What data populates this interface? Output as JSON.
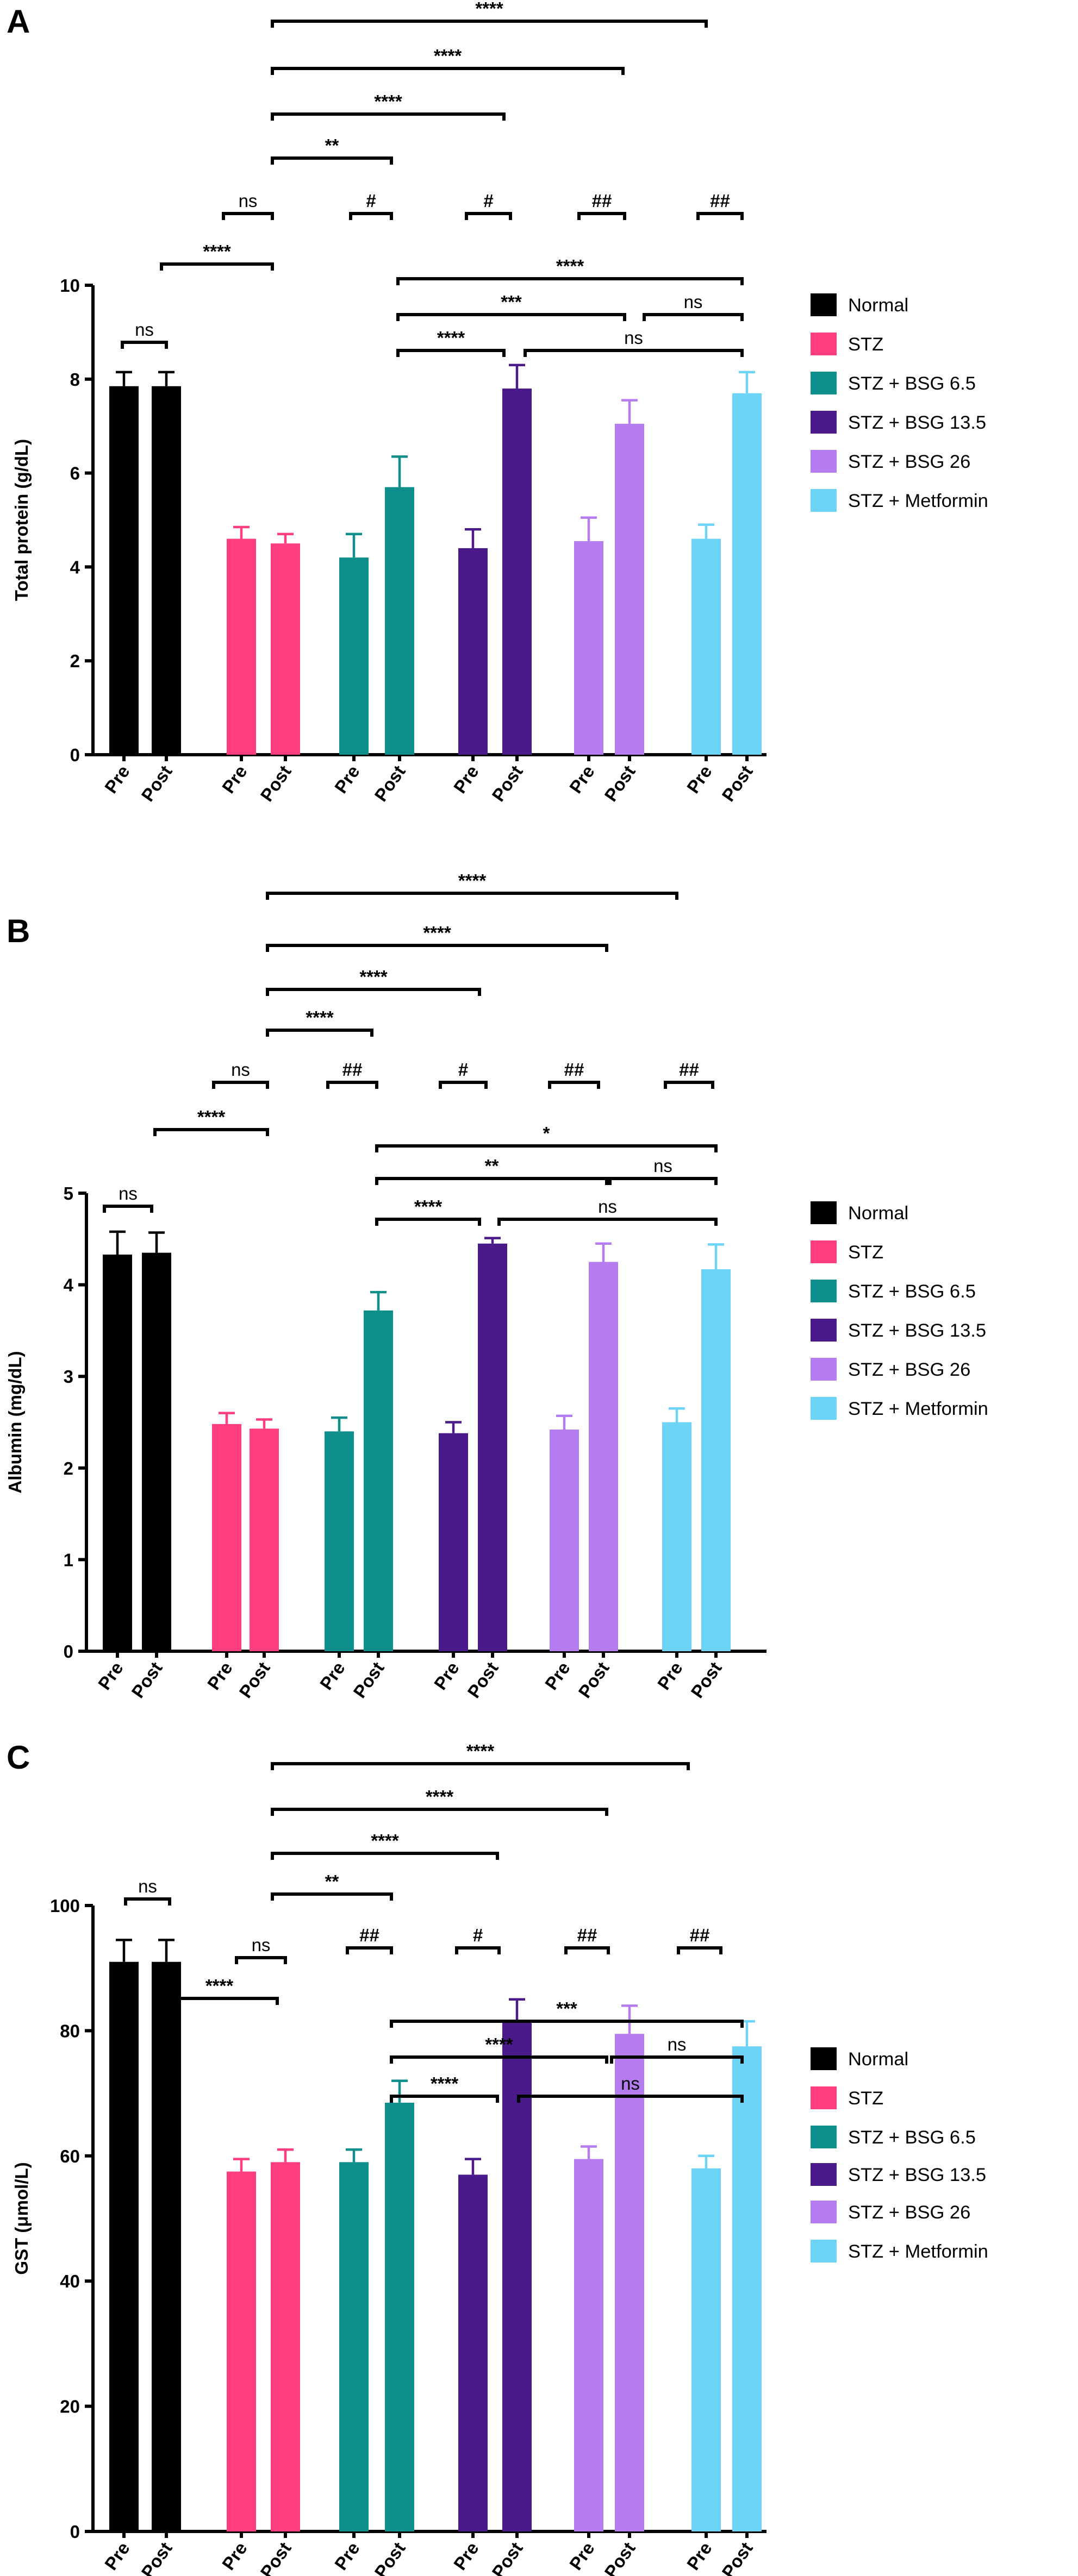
{
  "chart_data": [
    {
      "type": "bar",
      "panel_label": "A",
      "ylabel": "Total protein (g/dL)",
      "categories": [
        "Pre",
        "Post"
      ],
      "ylim": [
        0,
        10
      ],
      "yticks": [
        0,
        2,
        4,
        6,
        8,
        10
      ],
      "series": [
        {
          "name": "Normal",
          "color": "#000000",
          "values": [
            7.85,
            7.85
          ],
          "errors": [
            0.3,
            0.3
          ]
        },
        {
          "name": "STZ",
          "color": "#ff3d7f",
          "values": [
            4.6,
            4.5
          ],
          "errors": [
            0.25,
            0.2
          ]
        },
        {
          "name": "STZ + BSG 6.5",
          "color": "#0e8f8c",
          "values": [
            4.2,
            5.7
          ],
          "errors": [
            0.5,
            0.65
          ]
        },
        {
          "name": "STZ + BSG 13.5",
          "color": "#4a1a8a",
          "values": [
            4.4,
            7.8
          ],
          "errors": [
            0.4,
            0.5
          ]
        },
        {
          "name": "STZ + BSG 26",
          "color": "#b57cf0",
          "values": [
            4.55,
            7.05
          ],
          "errors": [
            0.5,
            0.5
          ]
        },
        {
          "name": "STZ + Metformin",
          "color": "#6dd4f7",
          "values": [
            4.6,
            7.7
          ],
          "errors": [
            0.3,
            0.45
          ]
        }
      ],
      "annotations": [
        "****",
        "****",
        "****",
        "**",
        "ns",
        "#",
        "#",
        "##",
        "##",
        "****",
        "****",
        "***",
        "ns",
        "****",
        "ns",
        "ns"
      ]
    },
    {
      "type": "bar",
      "panel_label": "B",
      "ylabel": "Albumin (mg/dL)",
      "categories": [
        "Pre",
        "Post"
      ],
      "ylim": [
        0,
        5
      ],
      "yticks": [
        0,
        1,
        2,
        3,
        4,
        5
      ],
      "series": [
        {
          "name": "Normal",
          "color": "#000000",
          "values": [
            4.33,
            4.35
          ],
          "errors": [
            0.25,
            0.22
          ]
        },
        {
          "name": "STZ",
          "color": "#ff3d7f",
          "values": [
            2.48,
            2.43
          ],
          "errors": [
            0.12,
            0.1
          ]
        },
        {
          "name": "STZ + BSG 6.5",
          "color": "#0e8f8c",
          "values": [
            2.4,
            3.72
          ],
          "errors": [
            0.15,
            0.2
          ]
        },
        {
          "name": "STZ + BSG 13.5",
          "color": "#4a1a8a",
          "values": [
            2.38,
            4.45
          ],
          "errors": [
            0.12,
            0.06
          ]
        },
        {
          "name": "STZ + BSG 26",
          "color": "#b57cf0",
          "values": [
            2.42,
            4.25
          ],
          "errors": [
            0.15,
            0.2
          ]
        },
        {
          "name": "STZ + Metformin",
          "color": "#6dd4f7",
          "values": [
            2.5,
            4.17
          ],
          "errors": [
            0.15,
            0.27
          ]
        }
      ],
      "annotations": [
        "****",
        "****",
        "****",
        "****",
        "ns",
        "##",
        "#",
        "##",
        "##",
        "****",
        "*",
        "**",
        "ns",
        "****",
        "ns",
        "ns"
      ]
    },
    {
      "type": "bar",
      "panel_label": "C",
      "ylabel": "GST (μmol/L)",
      "categories": [
        "Pre",
        "Post"
      ],
      "ylim": [
        0,
        100
      ],
      "yticks": [
        0,
        20,
        40,
        60,
        80,
        100
      ],
      "series": [
        {
          "name": "Normal",
          "color": "#000000",
          "values": [
            91,
            91
          ],
          "errors": [
            3.5,
            3.5
          ]
        },
        {
          "name": "STZ",
          "color": "#ff3d7f",
          "values": [
            57.5,
            59
          ],
          "errors": [
            2,
            2
          ]
        },
        {
          "name": "STZ + BSG 6.5",
          "color": "#0e8f8c",
          "values": [
            59,
            68.5
          ],
          "errors": [
            2,
            3.5
          ]
        },
        {
          "name": "STZ + BSG 13.5",
          "color": "#4a1a8a",
          "values": [
            57,
            81.5
          ],
          "errors": [
            2.5,
            3.5
          ]
        },
        {
          "name": "STZ + BSG 26",
          "color": "#b57cf0",
          "values": [
            59.5,
            79.5
          ],
          "errors": [
            2,
            4.5
          ]
        },
        {
          "name": "STZ + Metformin",
          "color": "#6dd4f7",
          "values": [
            58,
            77.5
          ],
          "errors": [
            2,
            4
          ]
        }
      ],
      "annotations": [
        "****",
        "****",
        "****",
        "**",
        "##",
        "#",
        "##",
        "##",
        "****",
        "***",
        "****",
        "ns",
        "****",
        "ns",
        "ns",
        "ns"
      ]
    }
  ]
}
